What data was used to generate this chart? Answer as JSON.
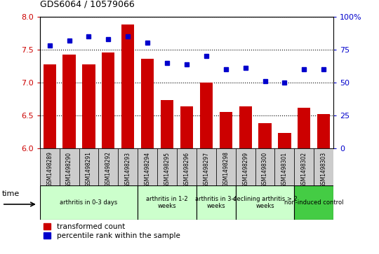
{
  "title": "GDS6064 / 10579066",
  "samples": [
    "GSM1498289",
    "GSM1498290",
    "GSM1498291",
    "GSM1498292",
    "GSM1498293",
    "GSM1498294",
    "GSM1498295",
    "GSM1498296",
    "GSM1498297",
    "GSM1498298",
    "GSM1498299",
    "GSM1498300",
    "GSM1498301",
    "GSM1498302",
    "GSM1498303"
  ],
  "bar_values": [
    7.28,
    7.42,
    7.28,
    7.46,
    7.88,
    7.36,
    6.74,
    6.64,
    7.0,
    6.56,
    6.64,
    6.38,
    6.24,
    6.62,
    6.52
  ],
  "dot_values": [
    78,
    82,
    85,
    83,
    85,
    80,
    65,
    64,
    70,
    60,
    61,
    51,
    50,
    60,
    60
  ],
  "bar_color": "#cc0000",
  "dot_color": "#0000cc",
  "ylim_left": [
    6,
    8
  ],
  "ylim_right": [
    0,
    100
  ],
  "yticks_left": [
    6.0,
    6.5,
    7.0,
    7.5,
    8.0
  ],
  "yticks_right": [
    0,
    25,
    50,
    75,
    100
  ],
  "groups": [
    {
      "label": "arthritis in 0-3 days",
      "start": 0,
      "end": 5,
      "color": "#ccffcc"
    },
    {
      "label": "arthritis in 1-2\nweeks",
      "start": 5,
      "end": 8,
      "color": "#ccffcc"
    },
    {
      "label": "arthritis in 3-4\nweeks",
      "start": 8,
      "end": 10,
      "color": "#ccffcc"
    },
    {
      "label": "declining arthritis > 2\nweeks",
      "start": 10,
      "end": 13,
      "color": "#ccffcc"
    },
    {
      "label": "non-induced control",
      "start": 13,
      "end": 15,
      "color": "#44cc44"
    }
  ],
  "group_boundaries": [
    0,
    5,
    8,
    10,
    13,
    15
  ],
  "legend_bar_label": "transformed count",
  "legend_dot_label": "percentile rank within the sample",
  "time_label": "time",
  "sample_box_color": "#cccccc",
  "bg_color": "#ffffff"
}
